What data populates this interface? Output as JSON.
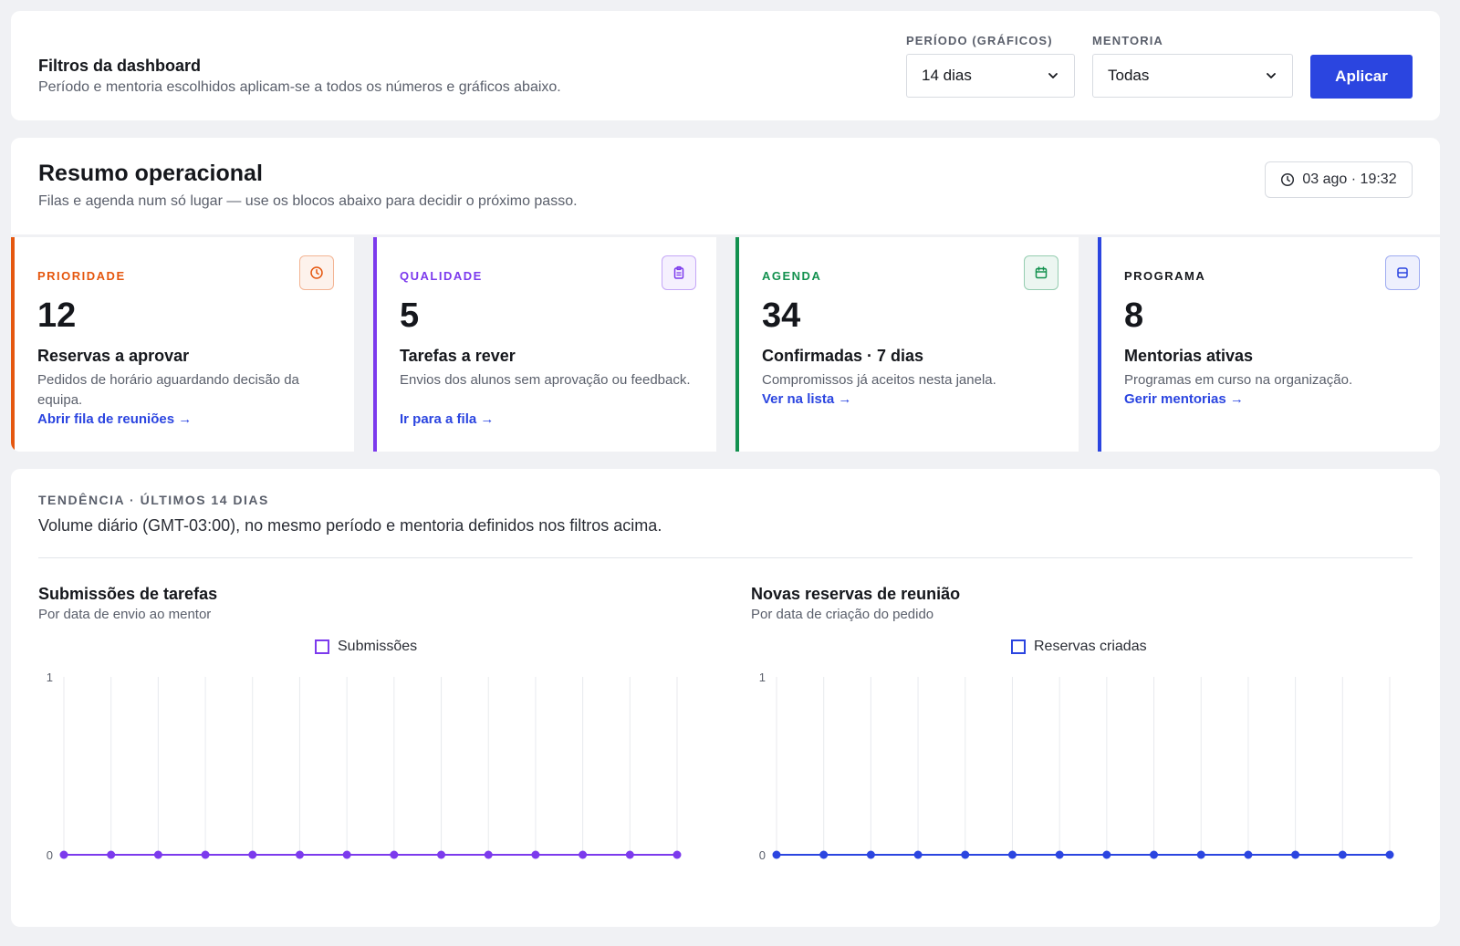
{
  "filters": {
    "title": "Filtros da dashboard",
    "subtitle": "Período e mentoria escolhidos aplicam-se a todos os números e gráficos abaixo.",
    "period_label": "PERÍODO (GRÁFICOS)",
    "period_value": "14 dias",
    "mentoria_label": "MENTORIA",
    "mentoria_value": "Todas",
    "apply_label": "Aplicar",
    "accent": "#2b45e0"
  },
  "summary": {
    "title": "Resumo operacional",
    "subtitle": "Filas e agenda num só lugar — use os blocos abaixo para decidir o próximo passo.",
    "timestamp": "03 ago · 19:32",
    "cards": [
      {
        "label": "PRIORIDADE",
        "color": "#e5570f",
        "icon": "clock-icon",
        "value": "12",
        "heading": "Reservas a aprovar",
        "description": "Pedidos de horário aguardando decisão da equipa.",
        "link": "Abrir fila de reuniões →"
      },
      {
        "label": "QUALIDADE",
        "color": "#7c3aed",
        "icon": "clipboard-icon",
        "value": "5",
        "heading": "Tarefas a rever",
        "description": "Envios dos alunos sem aprovação ou feedback.",
        "link": "Ir para a fila →"
      },
      {
        "label": "AGENDA",
        "color": "#13914f",
        "icon": "calendar-icon",
        "value": "34",
        "heading": "Confirmadas · 7 dias",
        "description": "Compromissos já aceitos nesta janela.",
        "link": "Ver na lista →"
      },
      {
        "label": "PROGRAMA",
        "color": "#2b45e0",
        "label_color": "#15171c",
        "icon": "database-icon",
        "value": "8",
        "heading": "Mentorias ativas",
        "description": "Programas em curso na organização.",
        "link": "Gerir mentorias →"
      }
    ]
  },
  "trend": {
    "label": "TENDÊNCIA · ÚLTIMOS 14 DIAS",
    "subtitle": "Volume diário (GMT-03:00), no mesmo período e mentoria definidos nos filtros acima."
  },
  "chart_data": [
    {
      "type": "line",
      "title": "Submissões de tarefas",
      "subtitle": "Por data de envio ao mentor",
      "series": [
        {
          "name": "Submissões",
          "color": "#7c3aed",
          "values": [
            0,
            0,
            0,
            0,
            0,
            0,
            0,
            0,
            0,
            0,
            0,
            0,
            0,
            0
          ]
        }
      ],
      "y_ticks": [
        "0",
        "1"
      ],
      "ylim": [
        0,
        1
      ],
      "grid": "vertical",
      "legend": "top-center"
    },
    {
      "type": "line",
      "title": "Novas reservas de reunião",
      "subtitle": "Por data de criação do pedido",
      "series": [
        {
          "name": "Reservas criadas",
          "color": "#2b45e0",
          "values": [
            0,
            0,
            0,
            0,
            0,
            0,
            0,
            0,
            0,
            0,
            0,
            0,
            0,
            0
          ]
        }
      ],
      "y_ticks": [
        "0",
        "1"
      ],
      "ylim": [
        0,
        1
      ],
      "grid": "vertical",
      "legend": "top-center"
    }
  ]
}
